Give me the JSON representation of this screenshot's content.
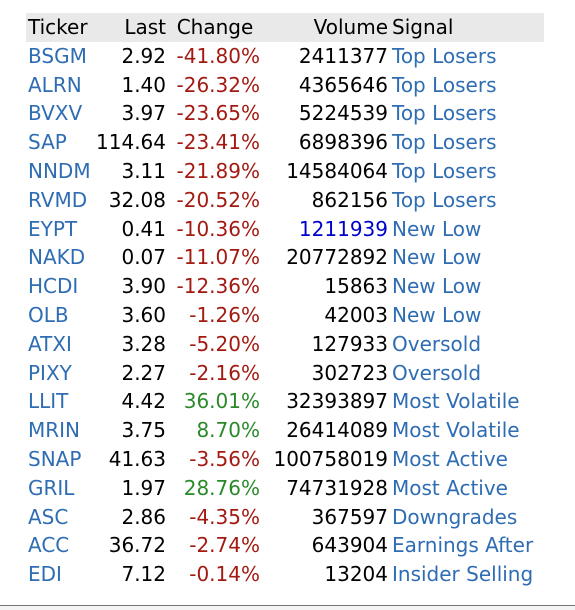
{
  "headers": {
    "ticker": "Ticker",
    "last": "Last",
    "change": "Change",
    "volume": "Volume",
    "signal": "Signal"
  },
  "rows": [
    {
      "ticker": "BSGM",
      "last": "2.92",
      "change": "-41.80%",
      "change_dir": "neg",
      "volume": "2411377",
      "signal": "Top Losers"
    },
    {
      "ticker": "ALRN",
      "last": "1.40",
      "change": "-26.32%",
      "change_dir": "neg",
      "volume": "4365646",
      "signal": "Top Losers"
    },
    {
      "ticker": "BVXV",
      "last": "3.97",
      "change": "-23.65%",
      "change_dir": "neg",
      "volume": "5224539",
      "signal": "Top Losers"
    },
    {
      "ticker": "SAP",
      "last": "114.64",
      "change": "-23.41%",
      "change_dir": "neg",
      "volume": "6898396",
      "signal": "Top Losers"
    },
    {
      "ticker": "NNDM",
      "last": "3.11",
      "change": "-21.89%",
      "change_dir": "neg",
      "volume": "14584064",
      "signal": "Top Losers"
    },
    {
      "ticker": "RVMD",
      "last": "32.08",
      "change": "-20.52%",
      "change_dir": "neg",
      "volume": "862156",
      "signal": "Top Losers"
    },
    {
      "ticker": "EYPT",
      "last": "0.41",
      "change": "-10.36%",
      "change_dir": "neg",
      "volume": "1211939",
      "volume_link": true,
      "signal": "New Low"
    },
    {
      "ticker": "NAKD",
      "last": "0.07",
      "change": "-11.07%",
      "change_dir": "neg",
      "volume": "20772892",
      "signal": "New Low"
    },
    {
      "ticker": "HCDI",
      "last": "3.90",
      "change": "-12.36%",
      "change_dir": "neg",
      "volume": "15863",
      "signal": "New Low"
    },
    {
      "ticker": "OLB",
      "last": "3.60",
      "change": "-1.26%",
      "change_dir": "neg",
      "volume": "42003",
      "signal": "New Low"
    },
    {
      "ticker": "ATXI",
      "last": "3.28",
      "change": "-5.20%",
      "change_dir": "neg",
      "volume": "127933",
      "signal": "Oversold"
    },
    {
      "ticker": "PIXY",
      "last": "2.27",
      "change": "-2.16%",
      "change_dir": "neg",
      "volume": "302723",
      "signal": "Oversold"
    },
    {
      "ticker": "LLIT",
      "last": "4.42",
      "change": "36.01%",
      "change_dir": "pos",
      "volume": "32393897",
      "signal": "Most Volatile"
    },
    {
      "ticker": "MRIN",
      "last": "3.75",
      "change": "8.70%",
      "change_dir": "pos",
      "volume": "26414089",
      "signal": "Most Volatile"
    },
    {
      "ticker": "SNAP",
      "last": "41.63",
      "change": "-3.56%",
      "change_dir": "neg",
      "volume": "100758019",
      "signal": "Most Active"
    },
    {
      "ticker": "GRIL",
      "last": "1.97",
      "change": "28.76%",
      "change_dir": "pos",
      "volume": "74731928",
      "signal": "Most Active"
    },
    {
      "ticker": "ASC",
      "last": "2.86",
      "change": "-4.35%",
      "change_dir": "neg",
      "volume": "367597",
      "signal": "Downgrades"
    },
    {
      "ticker": "ACC",
      "last": "36.72",
      "change": "-2.74%",
      "change_dir": "neg",
      "volume": "643904",
      "signal": "Earnings After"
    },
    {
      "ticker": "EDI",
      "last": "7.12",
      "change": "-0.14%",
      "change_dir": "neg",
      "volume": "13204",
      "signal": "Insider Selling"
    }
  ],
  "colors": {
    "link": "#2f6db3",
    "negative": "#a31a12",
    "positive": "#2a8a2a",
    "volume_link": "#0000cc",
    "header_bg": "#e9e9e9"
  }
}
